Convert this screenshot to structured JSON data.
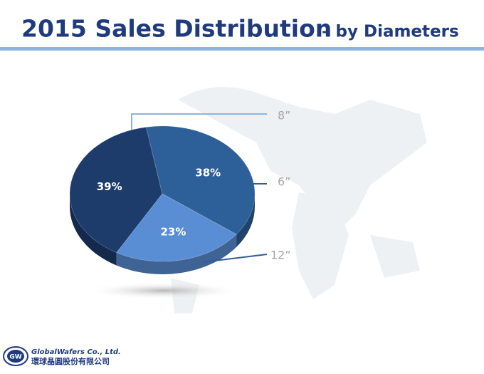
{
  "chart_data": {
    "type": "pie",
    "title": "2015 Sales Distribution",
    "subtitle": "– by Diameters",
    "categories": [
      "8”",
      "6”",
      "12”"
    ],
    "values": [
      39,
      38,
      23
    ],
    "value_labels": [
      "39%",
      "38%",
      "23%"
    ],
    "colors": [
      "#1d3c6c",
      "#2d5f98",
      "#5a8ed4"
    ]
  },
  "footer": {
    "logo": "GW",
    "company": "GlobalWafers Co., Ltd.",
    "company_local": "環球晶圓股份有限公司"
  }
}
